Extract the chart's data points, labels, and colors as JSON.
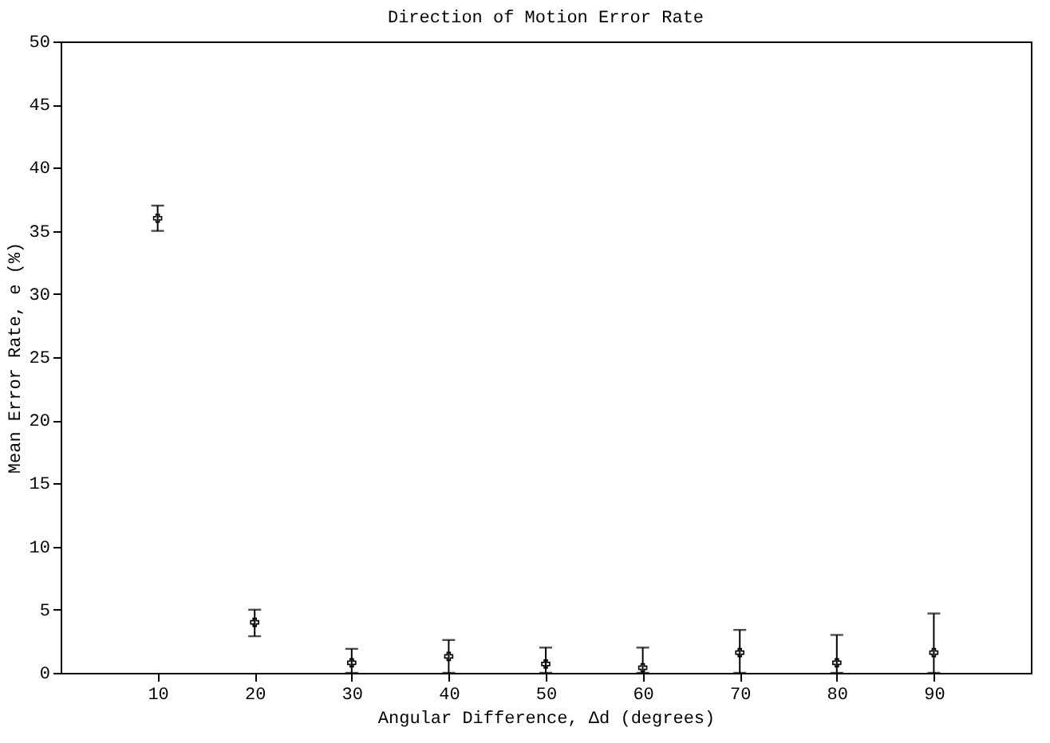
{
  "chart_data": {
    "type": "scatter",
    "title": "Direction of Motion Error Rate",
    "xlabel": "Angular Difference, Δd (degrees)",
    "ylabel": "Mean Error Rate, e (%)",
    "x": [
      10,
      20,
      30,
      40,
      50,
      60,
      70,
      80,
      90
    ],
    "values": [
      36.0,
      4.0,
      0.8,
      1.3,
      0.7,
      0.4,
      1.6,
      0.8,
      1.6
    ],
    "errors": [
      [
        35.0,
        37.0
      ],
      [
        2.9,
        5.0
      ],
      [
        0,
        1.9
      ],
      [
        0,
        2.6
      ],
      [
        0,
        2.0
      ],
      [
        0,
        2.0
      ],
      [
        0,
        3.4
      ],
      [
        0,
        3.0
      ],
      [
        0,
        4.7
      ]
    ],
    "color": "#000000",
    "marker": "cross",
    "grid": false,
    "xlim": [
      0,
      100
    ],
    "xticks": [
      10,
      20,
      30,
      40,
      50,
      60,
      70,
      80,
      90
    ],
    "ylim": [
      0,
      50
    ],
    "yticks": [
      0,
      5,
      10,
      15,
      20,
      25,
      30,
      35,
      40,
      45,
      50
    ]
  }
}
